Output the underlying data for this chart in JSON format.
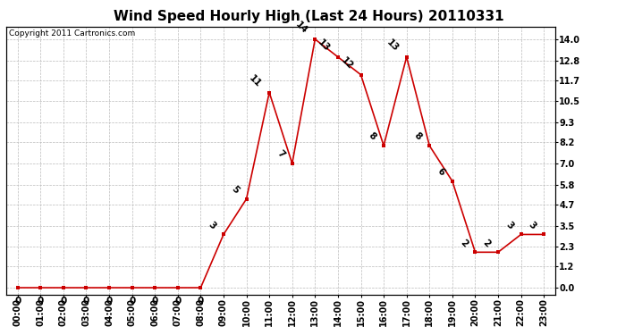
{
  "title": "Wind Speed Hourly High (Last 24 Hours) 20110331",
  "copyright": "Copyright 2011 Cartronics.com",
  "hours": [
    "00:00",
    "01:00",
    "02:00",
    "03:00",
    "04:00",
    "05:00",
    "06:00",
    "07:00",
    "08:00",
    "09:00",
    "10:00",
    "11:00",
    "12:00",
    "13:00",
    "14:00",
    "15:00",
    "16:00",
    "17:00",
    "18:00",
    "19:00",
    "20:00",
    "21:00",
    "22:00",
    "23:00"
  ],
  "values": [
    0,
    0,
    0,
    0,
    0,
    0,
    0,
    0,
    0,
    3,
    5,
    11,
    7,
    14,
    13,
    12,
    8,
    13,
    8,
    6,
    2,
    2,
    3,
    3
  ],
  "line_color": "#cc0000",
  "marker_color": "#cc0000",
  "bg_color": "#ffffff",
  "grid_color": "#bbbbbb",
  "yticks": [
    0.0,
    1.2,
    2.3,
    3.5,
    4.7,
    5.8,
    7.0,
    8.2,
    9.3,
    10.5,
    11.7,
    12.8,
    14.0
  ],
  "ylim": [
    -0.4,
    14.7
  ],
  "title_fontsize": 11,
  "label_fontsize": 7,
  "copyright_fontsize": 6.5,
  "annotation_fontsize": 7.5
}
